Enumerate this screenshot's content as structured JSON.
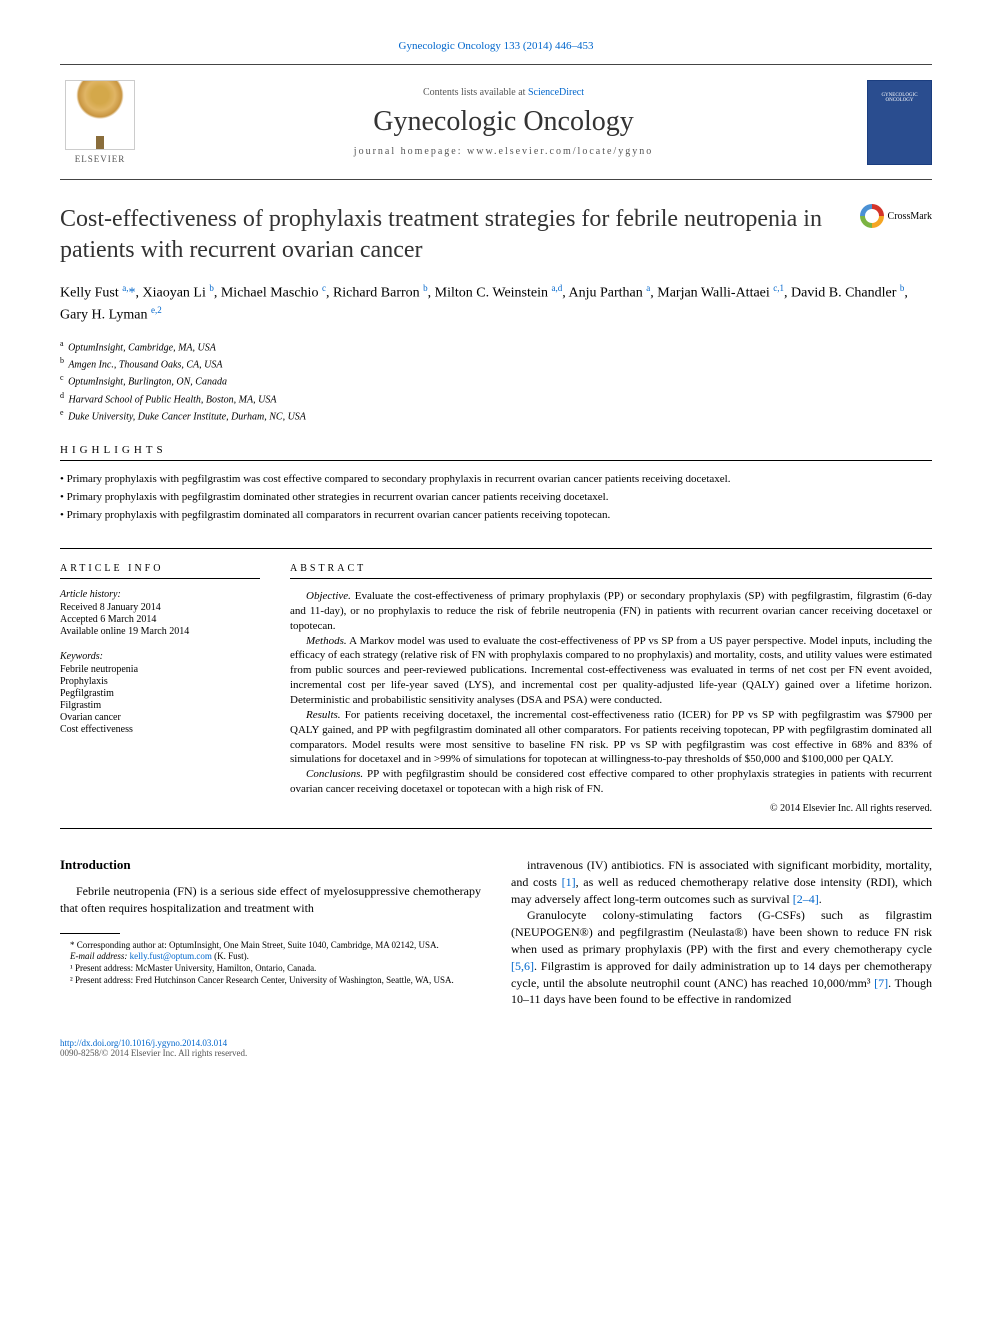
{
  "top_link": "Gynecologic Oncology 133 (2014) 446–453",
  "header": {
    "contents_text": "Contents lists available at ",
    "contents_link": "ScienceDirect",
    "journal_name": "Gynecologic Oncology",
    "homepage_text": "journal homepage: www.elsevier.com/locate/ygyno",
    "elsevier_label": "ELSEVIER",
    "cover_text": "GYNECOLOGIC ONCOLOGY"
  },
  "crossmark_label": "CrossMark",
  "title": "Cost-effectiveness of prophylaxis treatment strategies for febrile neutropenia in patients with recurrent ovarian cancer",
  "authors_html": "Kelly Fust <sup>a,</sup><span class='star'>*</span>, Xiaoyan Li <sup>b</sup>, Michael Maschio <sup>c</sup>, Richard Barron <sup>b</sup>, Milton C. Weinstein <sup>a,d</sup>, Anju Parthan <sup>a</sup>, Marjan Walli-Attaei <sup>c,1</sup>, David B. Chandler <sup>b</sup>, Gary H. Lyman <sup>e,2</sup>",
  "affiliations": [
    {
      "sup": "a",
      "text": "OptumInsight, Cambridge, MA, USA"
    },
    {
      "sup": "b",
      "text": "Amgen Inc., Thousand Oaks, CA, USA"
    },
    {
      "sup": "c",
      "text": "OptumInsight, Burlington, ON, Canada"
    },
    {
      "sup": "d",
      "text": "Harvard School of Public Health, Boston, MA, USA"
    },
    {
      "sup": "e",
      "text": "Duke University, Duke Cancer Institute, Durham, NC, USA"
    }
  ],
  "highlights_header": "HIGHLIGHTS",
  "highlights": [
    "Primary prophylaxis with pegfilgrastim was cost effective compared to secondary prophylaxis in recurrent ovarian cancer patients receiving docetaxel.",
    "Primary prophylaxis with pegfilgrastim dominated other strategies in recurrent ovarian cancer patients receiving docetaxel.",
    "Primary prophylaxis with pegfilgrastim dominated all comparators in recurrent ovarian cancer patients receiving topotecan."
  ],
  "article_info": {
    "header": "ARTICLE INFO",
    "history_label": "Article history:",
    "history": [
      "Received 8 January 2014",
      "Accepted 6 March 2014",
      "Available online 19 March 2014"
    ],
    "keywords_label": "Keywords:",
    "keywords": [
      "Febrile neutropenia",
      "Prophylaxis",
      "Pegfilgrastim",
      "Filgrastim",
      "Ovarian cancer",
      "Cost effectiveness"
    ]
  },
  "abstract": {
    "header": "ABSTRACT",
    "sections": [
      {
        "label": "Objective.",
        "text": "Evaluate the cost-effectiveness of primary prophylaxis (PP) or secondary prophylaxis (SP) with pegfilgrastim, filgrastim (6-day and 11-day), or no prophylaxis to reduce the risk of febrile neutropenia (FN) in patients with recurrent ovarian cancer receiving docetaxel or topotecan."
      },
      {
        "label": "Methods.",
        "text": "A Markov model was used to evaluate the cost-effectiveness of PP vs SP from a US payer perspective. Model inputs, including the efficacy of each strategy (relative risk of FN with prophylaxis compared to no prophylaxis) and mortality, costs, and utility values were estimated from public sources and peer-reviewed publications. Incremental cost-effectiveness was evaluated in terms of net cost per FN event avoided, incremental cost per life-year saved (LYS), and incremental cost per quality-adjusted life-year (QALY) gained over a lifetime horizon. Deterministic and probabilistic sensitivity analyses (DSA and PSA) were conducted."
      },
      {
        "label": "Results.",
        "text": "For patients receiving docetaxel, the incremental cost-effectiveness ratio (ICER) for PP vs SP with pegfilgrastim was $7900 per QALY gained, and PP with pegfilgrastim dominated all other comparators. For patients receiving topotecan, PP with pegfilgrastim dominated all comparators. Model results were most sensitive to baseline FN risk. PP vs SP with pegfilgrastim was cost effective in 68% and 83% of simulations for docetaxel and in >99% of simulations for topotecan at willingness-to-pay thresholds of $50,000 and $100,000 per QALY."
      },
      {
        "label": "Conclusions.",
        "text": "PP with pegfilgrastim should be considered cost effective compared to other prophylaxis strategies in patients with recurrent ovarian cancer receiving docetaxel or topotecan with a high risk of FN."
      }
    ],
    "copyright": "© 2014 Elsevier Inc. All rights reserved."
  },
  "body": {
    "intro_header": "Introduction",
    "left_para": "Febrile neutropenia (FN) is a serious side effect of myelosuppressive chemotherapy that often requires hospitalization and treatment with",
    "right_para1": "intravenous (IV) antibiotics. FN is associated with significant morbidity, mortality, and costs [1], as well as reduced chemotherapy relative dose intensity (RDI), which may adversely affect long-term outcomes such as survival [2–4].",
    "right_para2": "Granulocyte colony-stimulating factors (G-CSFs) such as filgrastim (NEUPOGEN®) and pegfilgrastim (Neulasta®) have been shown to reduce FN risk when used as primary prophylaxis (PP) with the first and every chemotherapy cycle [5,6]. Filgrastim is approved for daily administration up to 14 days per chemotherapy cycle, until the absolute neutrophil count (ANC) has reached 10,000/mm³ [7]. Though 10–11 days have been found to be effective in randomized",
    "footnotes": [
      "* Corresponding author at: OptumInsight, One Main Street, Suite 1040, Cambridge, MA 02142, USA.",
      "E-mail address: kelly.fust@optum.com (K. Fust).",
      "¹ Present address: McMaster University, Hamilton, Ontario, Canada.",
      "² Present address: Fred Hutchinson Cancer Research Center, University of Washington, Seattle, WA, USA."
    ]
  },
  "footer": {
    "doi": "http://dx.doi.org/10.1016/j.ygyno.2014.03.014",
    "issn": "0090-8258/© 2014 Elsevier Inc. All rights reserved."
  },
  "colors": {
    "link": "#0066cc",
    "text": "#000000",
    "border": "#000000",
    "cover_bg": "#2a4d8f"
  }
}
